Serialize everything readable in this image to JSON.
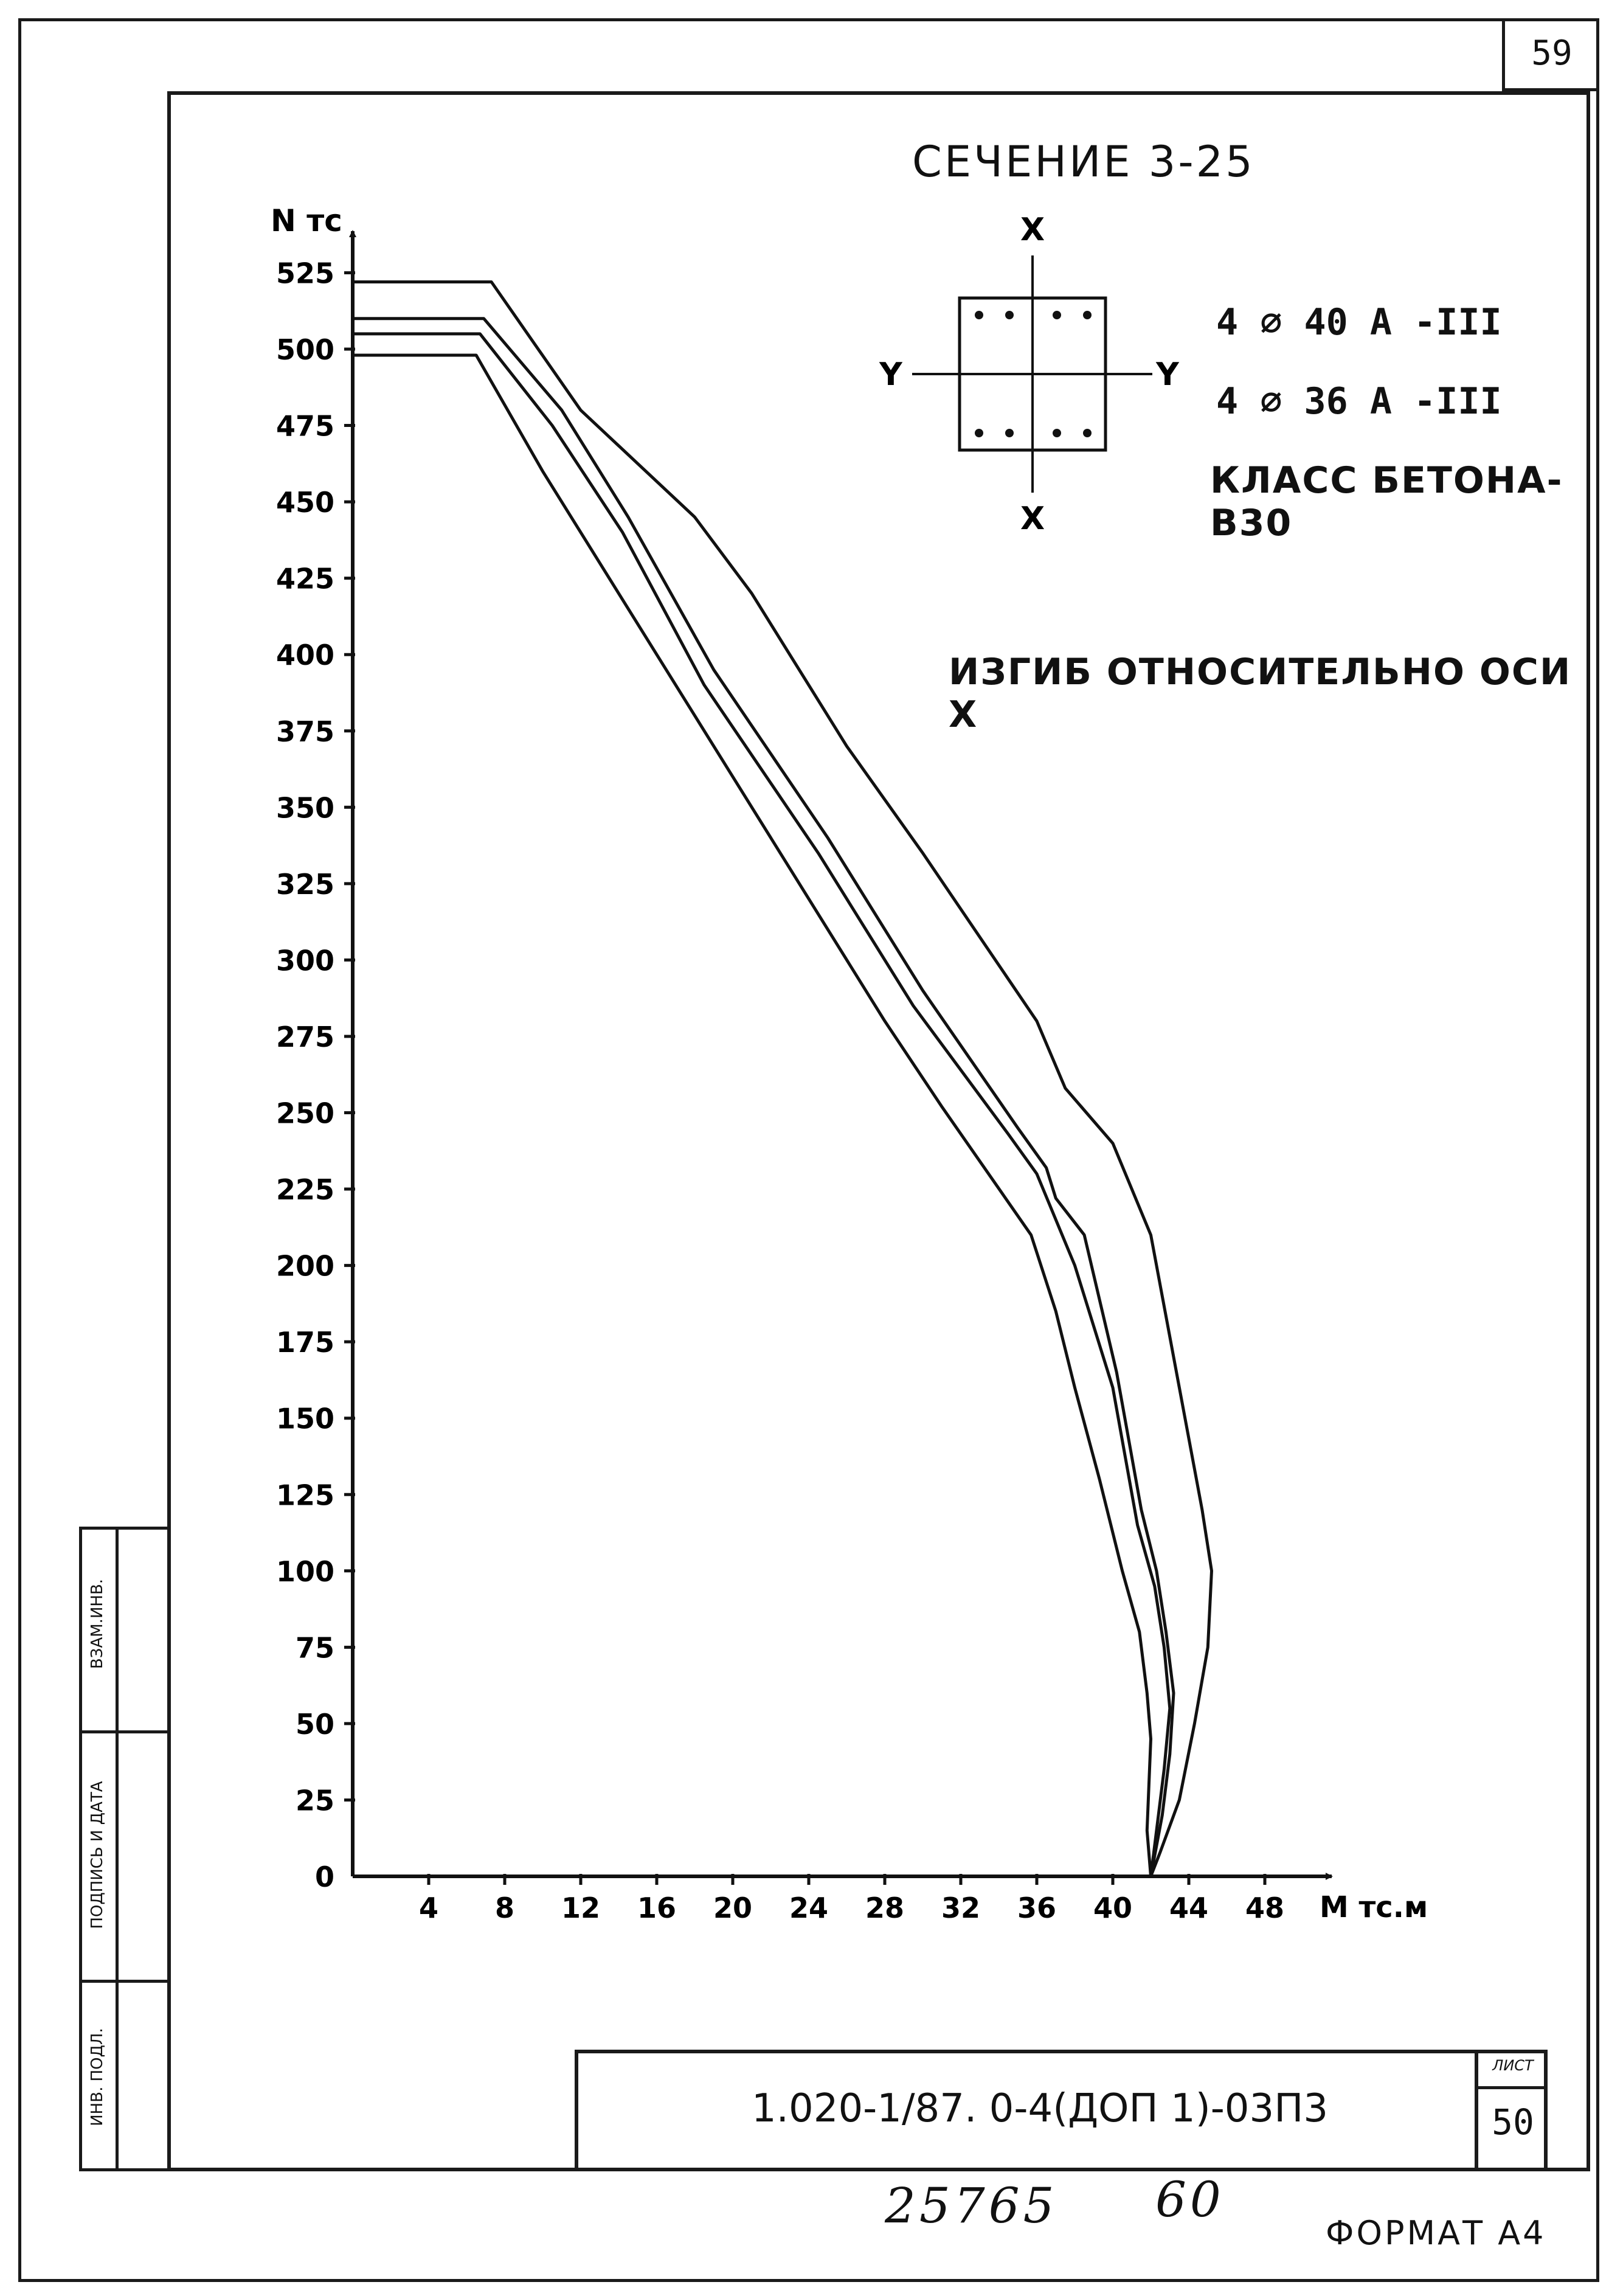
{
  "page": {
    "number": "59"
  },
  "chart_data": {
    "type": "line",
    "title": "СЕЧЕНИЕ 3-25",
    "ylabel": "N тс",
    "xlabel": "М тс.м",
    "xlim": [
      0,
      50
    ],
    "ylim": [
      0,
      535
    ],
    "xticks": [
      4,
      8,
      12,
      16,
      20,
      24,
      28,
      32,
      36,
      40,
      44,
      48
    ],
    "yticks": [
      0,
      25,
      50,
      75,
      100,
      125,
      150,
      175,
      200,
      225,
      250,
      275,
      300,
      325,
      350,
      375,
      400,
      425,
      450,
      475,
      500,
      525
    ],
    "series": [
      {
        "x": [
          0,
          7.3,
          12,
          18,
          21,
          26,
          30,
          36,
          37.5,
          40,
          42,
          43.5,
          44.7,
          45.2,
          45,
          44.3,
          43.5,
          42.5,
          42
        ],
        "y": [
          522,
          522,
          480,
          445,
          420,
          370,
          335,
          280,
          258,
          240,
          210,
          160,
          120,
          100,
          75,
          50,
          25,
          8,
          0
        ]
      },
      {
        "x": [
          0,
          6.9,
          11,
          14.5,
          19,
          25,
          30,
          35,
          36.5,
          37,
          38.5,
          40.2,
          41.5,
          42.3,
          42.8,
          43.2,
          43,
          42.6,
          42
        ],
        "y": [
          510,
          510,
          480,
          445,
          395,
          340,
          290,
          245,
          232,
          222,
          210,
          165,
          120,
          100,
          80,
          60,
          40,
          20,
          0
        ]
      },
      {
        "x": [
          0,
          6.7,
          10.5,
          14.2,
          18.5,
          24.5,
          29.5,
          34.5,
          36,
          36.8,
          38,
          40,
          41.3,
          42.2,
          42.7,
          43,
          42.7,
          42.3,
          42
        ],
        "y": [
          505,
          505,
          475,
          440,
          390,
          335,
          285,
          243,
          230,
          218,
          200,
          160,
          115,
          95,
          75,
          55,
          35,
          15,
          0
        ]
      },
      {
        "x": [
          0,
          6.5,
          10,
          14,
          18,
          23,
          28,
          31,
          35.7,
          37,
          38,
          39.3,
          40.5,
          41.4,
          41.8,
          42,
          41.9,
          41.8,
          42
        ],
        "y": [
          498,
          498,
          460,
          420,
          380,
          330,
          280,
          252,
          210,
          185,
          160,
          130,
          100,
          80,
          60,
          45,
          30,
          15,
          0
        ]
      }
    ]
  },
  "cross_section": {
    "axis_x_top": "X",
    "axis_x_bottom": "X",
    "axis_y_left": "Y",
    "axis_y_right": "Y"
  },
  "reinforcement": {
    "line1": "4 ⌀ 40 А -III",
    "line2": "4 ⌀ 36 А -III",
    "concrete_class": "КЛАСС БЕТОНА-В30"
  },
  "bending_note": "ИЗГИБ ОТНОСИТЕЛЬНО ОСИ Х",
  "title_block": {
    "document_number": "1.020-1/87. 0-4(ДОП 1)-03П3",
    "sheet_label": "ЛИСТ",
    "sheet_number": "50"
  },
  "sidebar_labels": {
    "interchange": "ВЗАМ.ИНВ.",
    "signature_date": "ПОДПИСЬ И ДАТА",
    "inv_original": "ИНВ. ПОДЛ."
  },
  "handwritten": {
    "left": "25765",
    "right": "60"
  },
  "format_label": "ФОРМАТ А4"
}
